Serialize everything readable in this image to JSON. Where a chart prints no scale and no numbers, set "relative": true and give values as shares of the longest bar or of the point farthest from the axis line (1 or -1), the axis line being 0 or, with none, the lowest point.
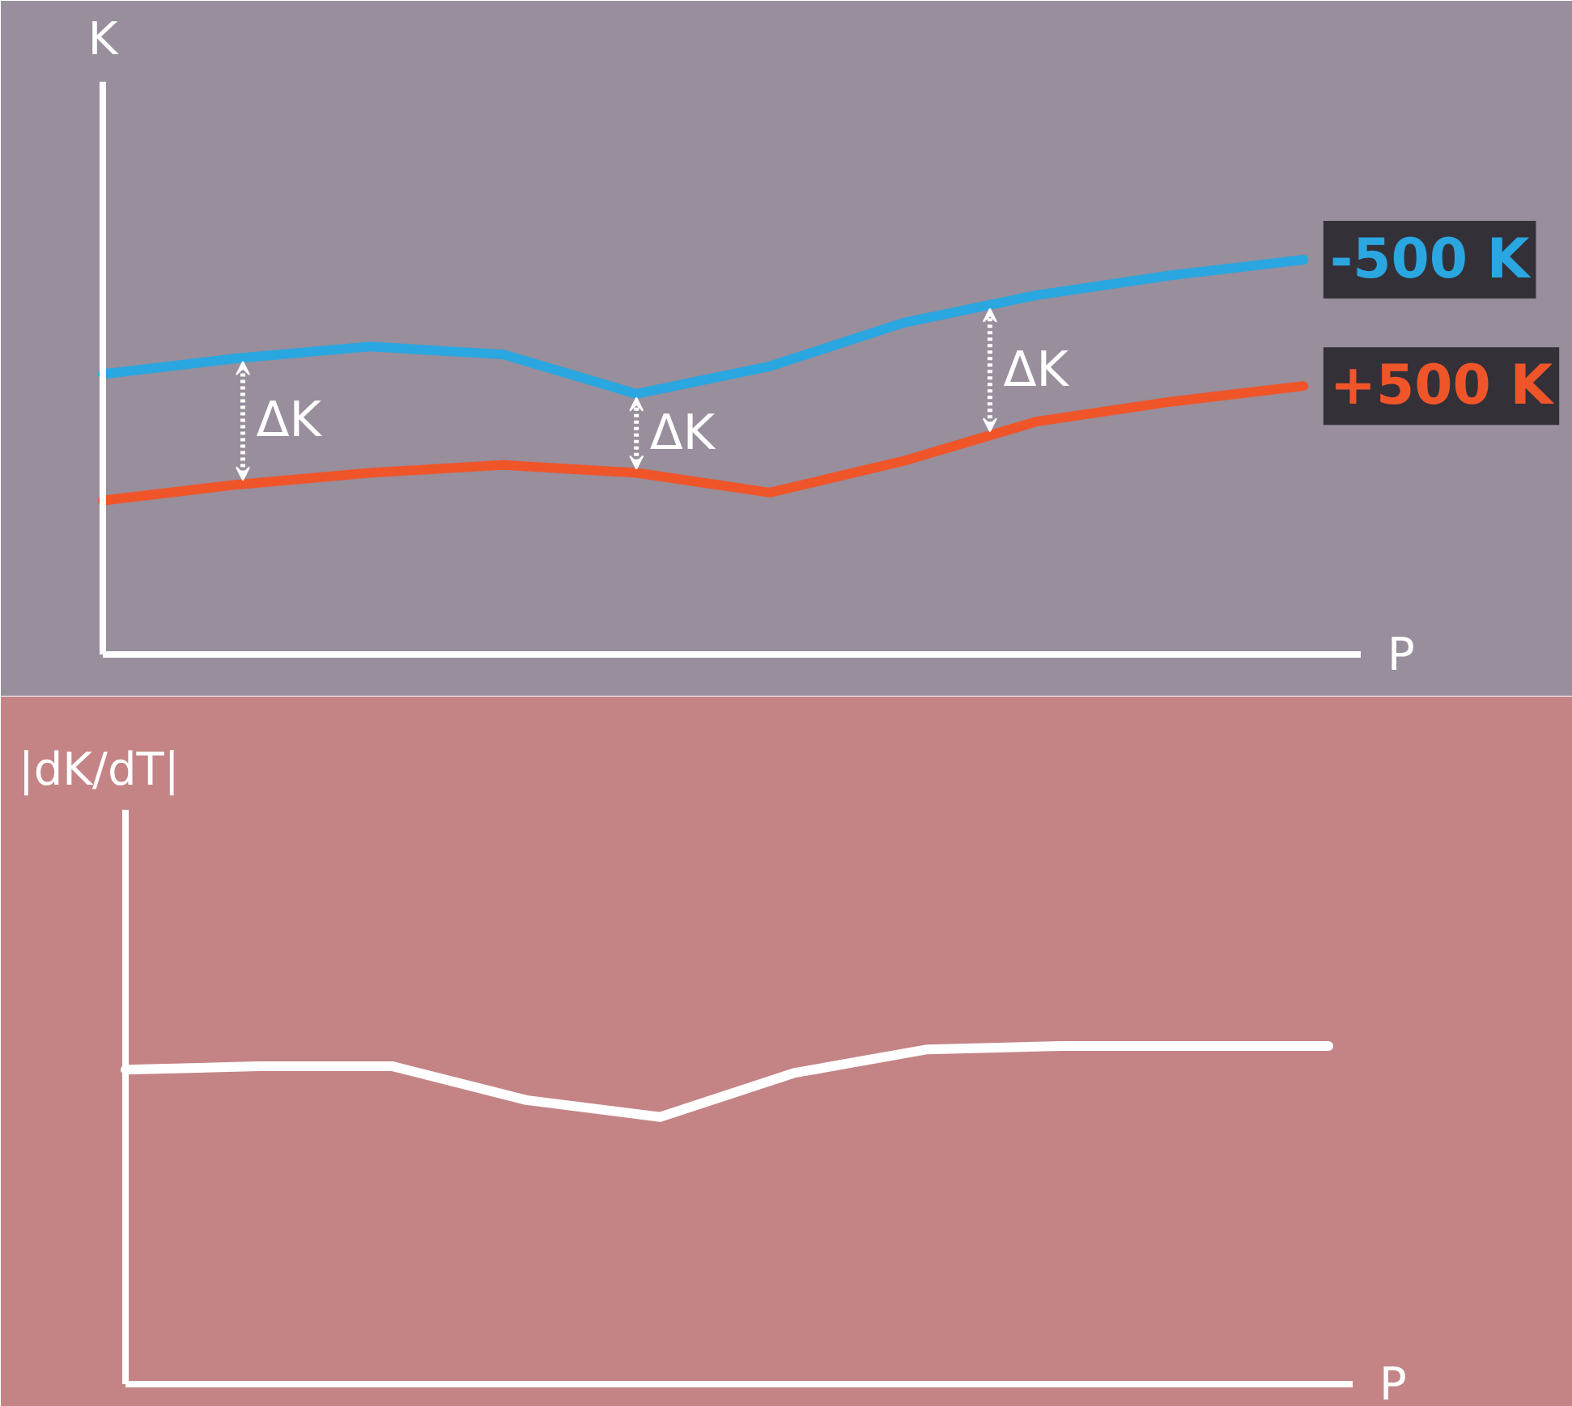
{
  "chart_data": [
    {
      "type": "line",
      "relative": true,
      "xlabel": "P",
      "ylabel": "K",
      "categories": [
        null,
        null,
        null,
        null,
        null,
        null,
        null,
        null,
        null,
        null
      ],
      "series": [
        {
          "name": "-500 K",
          "color": "#2aa7e0",
          "values": [
            0.71,
            0.75,
            0.78,
            0.76,
            0.66,
            0.73,
            0.84,
            0.91,
            0.96,
            1.0
          ]
        },
        {
          "name": "+500 K",
          "color": "#f0552a",
          "values": [
            0.39,
            0.43,
            0.46,
            0.48,
            0.46,
            0.41,
            0.49,
            0.59,
            0.64,
            0.68
          ]
        }
      ],
      "annotations": [
        "ΔK",
        "ΔK",
        "ΔK"
      ]
    },
    {
      "type": "line",
      "relative": true,
      "xlabel": "P",
      "ylabel": "|dK/dT|",
      "categories": [
        null,
        null,
        null,
        null,
        null,
        null,
        null,
        null,
        null,
        null
      ],
      "series": [
        {
          "color": "#ffffff",
          "values": [
            0.93,
            0.94,
            0.94,
            0.84,
            0.79,
            0.92,
            0.99,
            1.0,
            1.0,
            1.0
          ]
        }
      ]
    }
  ]
}
